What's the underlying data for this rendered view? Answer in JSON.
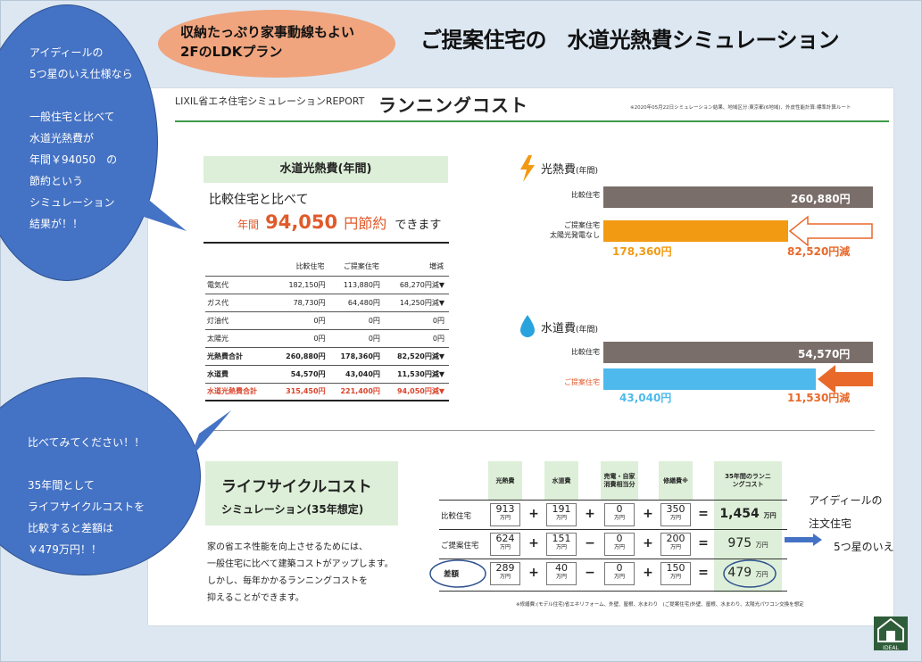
{
  "pill": {
    "line1": "収納たっぷり家事動線もよい",
    "line2": "2FのLDKプラン"
  },
  "main_title": "ご提案住宅の　水道光熱費シミュレーション",
  "report": {
    "header": "LIXIL省エネ住宅シミュレーションREPORT",
    "title": "ランニングコスト",
    "note": "※2020年05月22日シミュレーション結果、地域区分:東京都(6地域)、外皮性能計算:標準計算ルート",
    "utility_tag": "水道光熱費(年間)",
    "compare_text": "比較住宅と比べて",
    "save_year": "年間",
    "save_amount": "94,050",
    "save_unit": "円節約",
    "save_tail": "できます",
    "table": {
      "headers": [
        "",
        "比較住宅",
        "ご提案住宅",
        "増減"
      ],
      "rows": [
        [
          "電気代",
          "182,150円",
          "113,880円",
          "68,270円減▼"
        ],
        [
          "ガス代",
          "78,730円",
          "64,480円",
          "14,250円減▼"
        ],
        [
          "灯油代",
          "0円",
          "0円",
          "0円"
        ],
        [
          "太陽光",
          "0円",
          "0円",
          "0円"
        ],
        [
          "光熱費合計",
          "260,880円",
          "178,360円",
          "82,520円減▼"
        ],
        [
          "水道費",
          "54,570円",
          "43,040円",
          "11,530円減▼"
        ],
        [
          "水道光熱費合計",
          "315,450円",
          "221,400円",
          "94,050円減▼"
        ]
      ]
    },
    "energy": {
      "title": "光熱費",
      "title_sub": "(年間)",
      "compare_label": "比較住宅",
      "compare_value": "260,880円",
      "proposed_label1": "ご提案住宅",
      "proposed_label2": "太陽光発電なし",
      "proposed_value": "178,360円",
      "diff": "82,520円減"
    },
    "water": {
      "title": "水道費",
      "title_sub": "(年間)",
      "compare_label": "比較住宅",
      "compare_value": "54,570円",
      "proposed_label": "ご提案住宅",
      "proposed_value": "43,040円",
      "diff": "11,530円減"
    },
    "lifecycle": {
      "tag_line1": "ライフサイクルコスト",
      "tag_line2": "シミュレーション(35年想定)",
      "body": [
        "家の省エネ性能を向上させるためには、",
        "一般住宅に比べて建築コストがアップします。",
        "しかし、毎年かかるランニングコストを",
        "抑えることができます。"
      ],
      "col_headers": [
        "光熱費",
        "水道費",
        "売電・自家消費相当分",
        "修繕費※",
        "35年間のランニングコスト"
      ],
      "rows": [
        {
          "label": "比較住宅",
          "v": [
            "913",
            "191",
            "0",
            "350"
          ],
          "total": "1,454"
        },
        {
          "label": "ご提案住宅",
          "v": [
            "624",
            "151",
            "0",
            "200"
          ],
          "total": "975"
        },
        {
          "label": "差額",
          "v": [
            "289",
            "40",
            "0",
            "150"
          ],
          "total": "479"
        }
      ],
      "unit": "万円",
      "ops": [
        "+",
        "+",
        "−",
        "+",
        "="
      ],
      "footnote": "※修繕費:(モデル住宅)省エネリフォーム、外壁、屋根、水まわり　(ご提案住宅)外壁、屋根、水まわり、太陽光パワコン交換を想定"
    }
  },
  "bubble1": [
    "アイディールの",
    "5つ星のいえ仕様なら",
    "",
    "一般住宅と比べて",
    "水道光熱費が",
    "年間￥94050　の",
    "節約という",
    "シミュレーション",
    "結果が！！"
  ],
  "bubble2": [
    "比べてみてください！！",
    "",
    "35年間として",
    "ライフサイクルコストを",
    "比較すると差額は",
    "￥479万円！！"
  ],
  "right_note": {
    "line1": "アイディールの",
    "line2": "注文住宅",
    "line3": "5つ星のいえ"
  },
  "logo_text": "IDEAL",
  "colors": {
    "bubble": "#4472c4",
    "pill": "#f0a57e",
    "energy_bar": "#f29a12",
    "water_bar": "#4db9ec",
    "compare_bar": "#7a6e6a",
    "accent": "#e05a2b",
    "green_tag": "#ddefd8"
  }
}
